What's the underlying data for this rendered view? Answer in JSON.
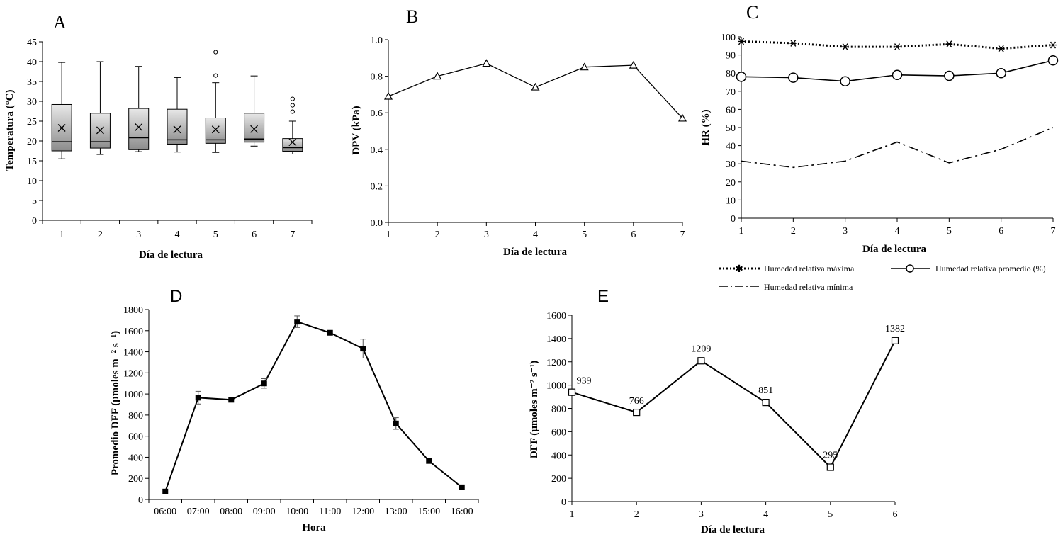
{
  "chart_data": [
    {
      "panel": "A",
      "type": "box",
      "ylabel": "Temperatura (°C)",
      "xlabel": "Día de lectura",
      "categories": [
        "1",
        "2",
        "3",
        "4",
        "5",
        "6",
        "7"
      ],
      "ylim": [
        0,
        45
      ],
      "yticks": [
        "0",
        "5",
        "10",
        "15",
        "20",
        "25",
        "30",
        "35",
        "40",
        "45"
      ],
      "boxes": [
        {
          "min": 15.5,
          "q1": 17.5,
          "median": 19.8,
          "q3": 29.2,
          "max": 39.8,
          "mean": 23.3,
          "outliers": []
        },
        {
          "min": 16.6,
          "q1": 18.2,
          "median": 19.8,
          "q3": 27.0,
          "max": 40.0,
          "mean": 22.7,
          "outliers": []
        },
        {
          "min": 17.3,
          "q1": 17.8,
          "median": 20.8,
          "q3": 28.2,
          "max": 38.8,
          "mean": 23.5,
          "outliers": []
        },
        {
          "min": 17.2,
          "q1": 19.2,
          "median": 20.3,
          "q3": 28.0,
          "max": 36.0,
          "mean": 22.9,
          "outliers": []
        },
        {
          "min": 17.1,
          "q1": 19.4,
          "median": 20.3,
          "q3": 25.8,
          "max": 34.7,
          "mean": 22.9,
          "outliers": [
            36.5,
            42.4
          ]
        },
        {
          "min": 18.7,
          "q1": 19.7,
          "median": 20.5,
          "q3": 27.0,
          "max": 36.4,
          "mean": 23.0,
          "outliers": []
        },
        {
          "min": 16.7,
          "q1": 17.4,
          "median": 18.3,
          "q3": 20.6,
          "max": 25.0,
          "mean": 19.7,
          "outliers": [
            27.4,
            29.0,
            30.6
          ]
        }
      ]
    },
    {
      "panel": "B",
      "type": "line",
      "ylabel": "DPV (kPa)",
      "xlabel": "Día de lectura",
      "categories": [
        "1",
        "2",
        "3",
        "4",
        "5",
        "6",
        "7"
      ],
      "ylim": [
        0,
        1
      ],
      "yticks": [
        "0.0",
        "0.2",
        "0.4",
        "0.6",
        "0.8",
        "1.0"
      ],
      "values": [
        0.69,
        0.8,
        0.87,
        0.74,
        0.85,
        0.86,
        0.57
      ]
    },
    {
      "panel": "C",
      "type": "line",
      "ylabel": "HR (%)",
      "xlabel": "Día de lectura",
      "categories": [
        "1",
        "2",
        "3",
        "4",
        "5",
        "6",
        "7"
      ],
      "ylim": [
        0,
        100
      ],
      "yticks": [
        "0",
        "10",
        "20",
        "30",
        "40",
        "50",
        "60",
        "70",
        "80",
        "90",
        "100"
      ],
      "series": [
        {
          "name": "Humedad relativa máxima",
          "values": [
            97.5,
            96.5,
            94.5,
            94.5,
            96.0,
            93.5,
            95.5
          ]
        },
        {
          "name": "Humedad relativa promedio (%)",
          "values": [
            78,
            77.5,
            75.5,
            79,
            78.5,
            80,
            87
          ]
        },
        {
          "name": "Humedad relativa mínima",
          "values": [
            31.5,
            28,
            31.5,
            42,
            30.5,
            38,
            50
          ]
        }
      ]
    },
    {
      "panel": "D",
      "type": "line",
      "ylabel": "Promedio DFF (µmoles m⁻² s⁻¹)",
      "xlabel": "Hora",
      "categories": [
        "06:00",
        "07:00",
        "08:00",
        "09:00",
        "10:00",
        "11:00",
        "12:00",
        "13:00",
        "15:00",
        "16:00"
      ],
      "ylim": [
        0,
        1800
      ],
      "yticks": [
        "0",
        "200",
        "400",
        "600",
        "800",
        "1000",
        "1200",
        "1400",
        "1600",
        "1800"
      ],
      "values": [
        75,
        965,
        945,
        1100,
        1685,
        1580,
        1430,
        720,
        365,
        115
      ],
      "errors": [
        0,
        60,
        0,
        45,
        55,
        0,
        90,
        55,
        0,
        0
      ]
    },
    {
      "panel": "E",
      "type": "line",
      "ylabel": "DFF (µmoles m⁻² s⁻¹)",
      "xlabel": "Día de lectura",
      "categories": [
        "1",
        "2",
        "3",
        "4",
        "5",
        "6"
      ],
      "ylim": [
        0,
        1600
      ],
      "yticks": [
        "0",
        "200",
        "400",
        "600",
        "800",
        "1000",
        "1200",
        "1400",
        "1600"
      ],
      "values": [
        939,
        766,
        1209,
        851,
        295,
        1382
      ],
      "data_labels": [
        "939",
        "766",
        "1209",
        "851",
        "295",
        "1382"
      ]
    }
  ]
}
